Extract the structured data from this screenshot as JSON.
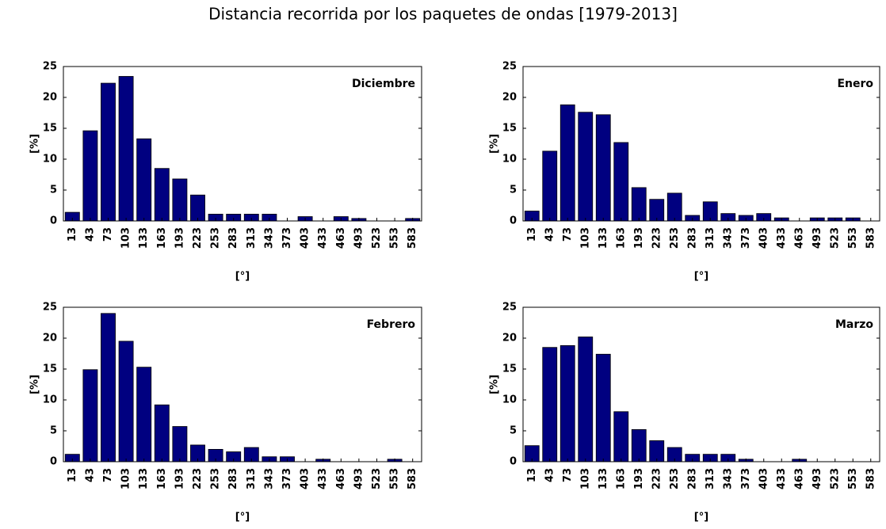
{
  "title": "Distancia recorrida por los paquetes de ondas [1979-2013]",
  "chart_data": [
    {
      "type": "bar",
      "annotation": "Diciembre",
      "xlabel": "[°]",
      "ylabel": "[%]",
      "color": "#000080",
      "categories": [
        "13",
        "43",
        "73",
        "103",
        "133",
        "163",
        "193",
        "223",
        "253",
        "283",
        "313",
        "343",
        "373",
        "403",
        "433",
        "463",
        "493",
        "523",
        "553",
        "583"
      ],
      "values": [
        1.4,
        14.6,
        22.3,
        23.4,
        13.3,
        8.5,
        6.8,
        4.2,
        1.1,
        1.1,
        1.1,
        1.1,
        0,
        0.7,
        0,
        0.7,
        0.4,
        0,
        0,
        0.4
      ],
      "ylim": [
        0,
        25
      ],
      "yticks": [
        0,
        5,
        10,
        15,
        20,
        25
      ]
    },
    {
      "type": "bar",
      "annotation": "Enero",
      "xlabel": "[°]",
      "ylabel": "[%]",
      "color": "#000080",
      "categories": [
        "13",
        "43",
        "73",
        "103",
        "133",
        "163",
        "193",
        "223",
        "253",
        "283",
        "313",
        "343",
        "373",
        "403",
        "433",
        "463",
        "493",
        "523",
        "553",
        "583"
      ],
      "values": [
        1.6,
        11.3,
        18.8,
        17.6,
        17.2,
        12.7,
        5.4,
        3.5,
        4.5,
        0.9,
        3.1,
        1.2,
        0.9,
        1.2,
        0.5,
        0,
        0.5,
        0.5,
        0.5,
        0
      ],
      "ylim": [
        0,
        25
      ],
      "yticks": [
        0,
        5,
        10,
        15,
        20,
        25
      ]
    },
    {
      "type": "bar",
      "annotation": "Febrero",
      "xlabel": "[°]",
      "ylabel": "[%]",
      "color": "#000080",
      "categories": [
        "13",
        "43",
        "73",
        "103",
        "133",
        "163",
        "193",
        "223",
        "253",
        "283",
        "313",
        "343",
        "373",
        "403",
        "433",
        "463",
        "493",
        "523",
        "553",
        "583"
      ],
      "values": [
        1.2,
        14.9,
        24.0,
        19.5,
        15.3,
        9.2,
        5.7,
        2.7,
        2.0,
        1.6,
        2.3,
        0.8,
        0.8,
        0,
        0.4,
        0,
        0,
        0,
        0.4,
        0
      ],
      "ylim": [
        0,
        25
      ],
      "yticks": [
        0,
        5,
        10,
        15,
        20,
        25
      ]
    },
    {
      "type": "bar",
      "annotation": "Marzo",
      "xlabel": "[°]",
      "ylabel": "[%]",
      "color": "#000080",
      "categories": [
        "13",
        "43",
        "73",
        "103",
        "133",
        "163",
        "193",
        "223",
        "253",
        "283",
        "313",
        "343",
        "373",
        "403",
        "433",
        "463",
        "493",
        "523",
        "553",
        "583"
      ],
      "values": [
        2.6,
        18.5,
        18.8,
        20.2,
        17.4,
        8.1,
        5.2,
        3.4,
        2.3,
        1.2,
        1.2,
        1.2,
        0.4,
        0,
        0,
        0.4,
        0,
        0,
        0,
        0
      ],
      "ylim": [
        0,
        25
      ],
      "yticks": [
        0,
        5,
        10,
        15,
        20,
        25
      ]
    }
  ]
}
